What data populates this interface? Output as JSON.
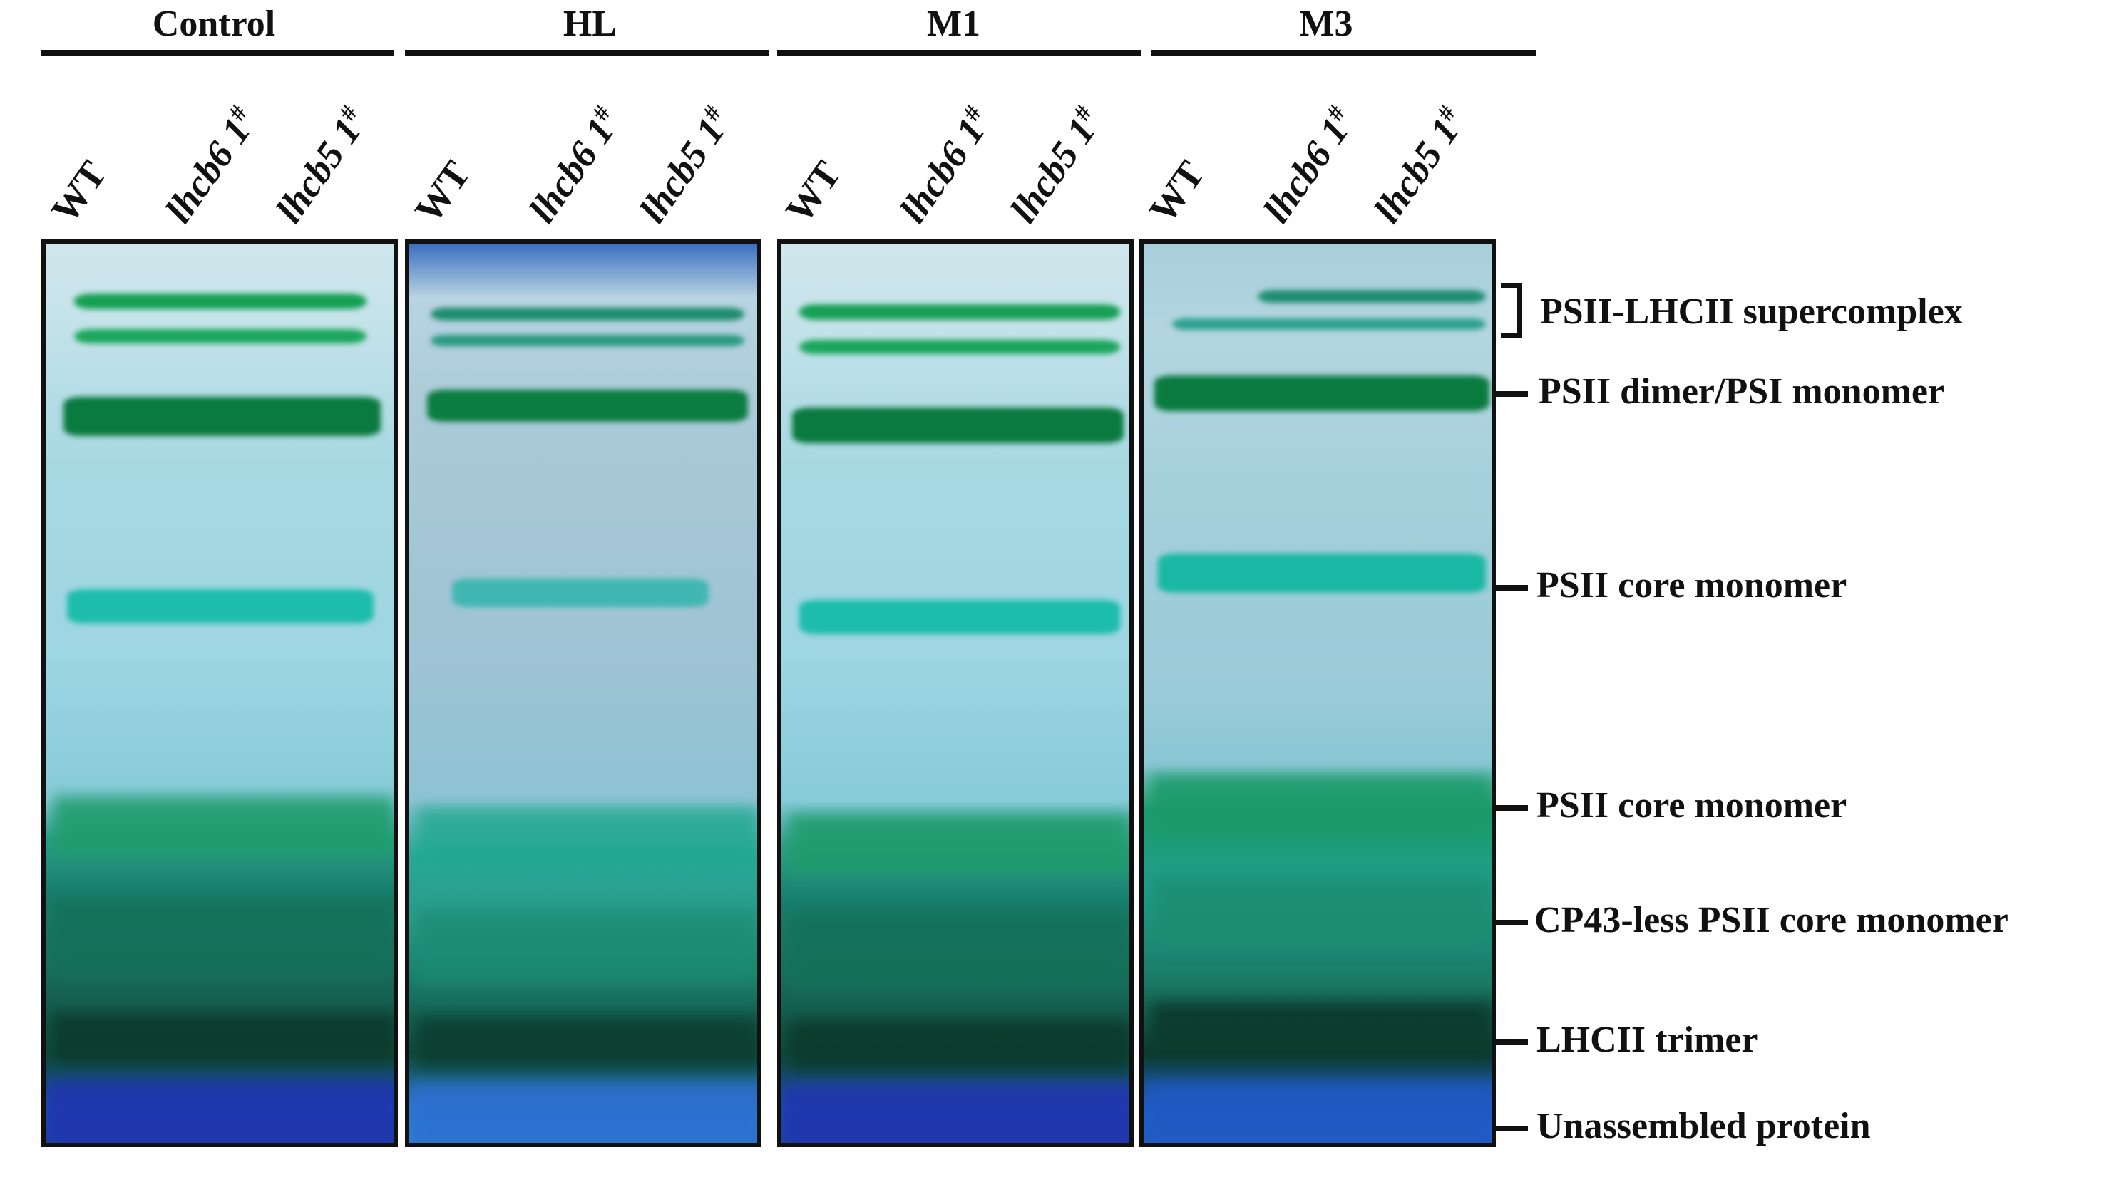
{
  "groups": [
    {
      "title": "Control",
      "lanes": [
        "WT",
        "lhcb6 1#",
        "lhcb5 1#"
      ]
    },
    {
      "title": "HL",
      "lanes": [
        "WT",
        "lhcb6 1#",
        "lhcb5 1#"
      ]
    },
    {
      "title": "M1",
      "lanes": [
        "WT",
        "lhcb6 1#",
        "lhcb5 1#"
      ]
    },
    {
      "title": "M3",
      "lanes": [
        "WT",
        "lhcb6 1#",
        "lhcb5 1#"
      ]
    }
  ],
  "lane_text": {
    "wt": "WT",
    "lhcb6": "lhcb6 1",
    "lhcb5": "lhcb5 1",
    "hash": "#"
  },
  "markers": [
    {
      "label": "PSII-LHCII supercomplex"
    },
    {
      "label": "PSII dimer/PSI monomer"
    },
    {
      "label": "PSII core monomer"
    },
    {
      "label": "PSII core monomer"
    },
    {
      "label": "CP43-less PSII core monomer"
    },
    {
      "label": "LHCII trimer"
    },
    {
      "label": "Unassembled protein"
    }
  ],
  "colors": {
    "band_green": "#0f8a4a",
    "band_dark_green": "#0a6b35",
    "band_teal": "#18b8a8",
    "gel_background": "#a9d3df",
    "gel_bottom": "#1f4ea8"
  }
}
